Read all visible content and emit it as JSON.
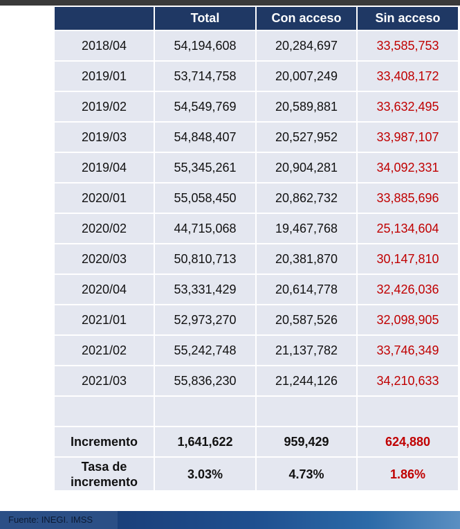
{
  "table": {
    "header": [
      "Total",
      "Con acceso",
      "Sin acceso"
    ],
    "rows": [
      [
        "2018/04",
        "54,194,608",
        "20,284,697",
        "33,585,753"
      ],
      [
        "2019/01",
        "53,714,758",
        "20,007,249",
        "33,408,172"
      ],
      [
        "2019/02",
        "54,549,769",
        "20,589,881",
        "33,632,495"
      ],
      [
        "2019/03",
        "54,848,407",
        "20,527,952",
        "33,987,107"
      ],
      [
        "2019/04",
        "55,345,261",
        "20,904,281",
        "34,092,331"
      ],
      [
        "2020/01",
        "55,058,450",
        "20,862,732",
        "33,885,696"
      ],
      [
        "2020/02",
        "44,715,068",
        "19,467,768",
        "25,134,604"
      ],
      [
        "2020/03",
        "50,810,713",
        "20,381,870",
        "30,147,810"
      ],
      [
        "2020/04",
        "53,331,429",
        "20,614,778",
        "32,426,036"
      ],
      [
        "2021/01",
        "52,973,270",
        "20,587,526",
        "32,098,905"
      ],
      [
        "2021/02",
        "55,242,748",
        "21,137,782",
        "33,746,349"
      ],
      [
        "2021/03",
        "55,836,230",
        "21,244,126",
        "34,210,633"
      ]
    ],
    "summary": [
      [
        "Incremento",
        "1,641,622",
        "959,429",
        "624,880"
      ],
      [
        "Tasa de incremento",
        "3.03%",
        "4.73%",
        "1.86%"
      ]
    ]
  },
  "footer": {
    "source": "Fuente: INEGI. IMSS"
  }
}
